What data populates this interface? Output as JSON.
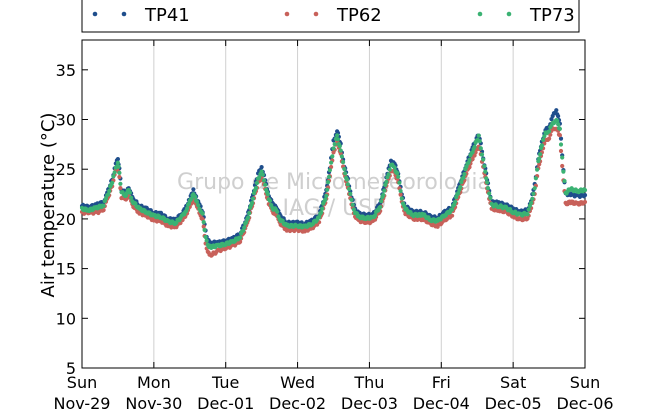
{
  "chart_data": {
    "type": "line",
    "ylabel": "Air temperature (°C)",
    "ylim": [
      5,
      38
    ],
    "yticks": [
      5,
      10,
      15,
      20,
      25,
      30,
      35
    ],
    "grid": "vertical",
    "legend_placement": "top",
    "watermark": [
      "Grupo de Micrometeorologia",
      "IAG / USP"
    ],
    "x_ticks": [
      {
        "day": "Sun",
        "date": "Nov-29"
      },
      {
        "day": "Mon",
        "date": "Nov-30"
      },
      {
        "day": "Tue",
        "date": "Dec-01"
      },
      {
        "day": "Wed",
        "date": "Dec-02"
      },
      {
        "day": "Thu",
        "date": "Dec-03"
      },
      {
        "day": "Fri",
        "date": "Dec-04"
      },
      {
        "day": "Sat",
        "date": "Dec-05"
      },
      {
        "day": "Sun",
        "date": "Dec-06"
      }
    ],
    "x_unit": "days since Nov-29 00:00",
    "series": [
      {
        "name": "TP41",
        "color": "#1f4e8c",
        "points": [
          [
            0,
            21.3
          ],
          [
            0.1,
            21.2
          ],
          [
            0.2,
            21.4
          ],
          [
            0.3,
            21.7
          ],
          [
            0.35,
            22.6
          ],
          [
            0.42,
            24.0
          ],
          [
            0.47,
            25.5
          ],
          [
            0.5,
            26.1
          ],
          [
            0.52,
            25.0
          ],
          [
            0.55,
            23.0
          ],
          [
            0.6,
            22.6
          ],
          [
            0.65,
            23.2
          ],
          [
            0.7,
            22.1
          ],
          [
            0.8,
            21.3
          ],
          [
            0.9,
            21.0
          ],
          [
            1.0,
            20.6
          ],
          [
            1.1,
            20.5
          ],
          [
            1.2,
            20.0
          ],
          [
            1.3,
            19.9
          ],
          [
            1.4,
            20.6
          ],
          [
            1.45,
            21.2
          ],
          [
            1.5,
            22.0
          ],
          [
            1.55,
            22.9
          ],
          [
            1.6,
            21.9
          ],
          [
            1.65,
            21.2
          ],
          [
            1.68,
            20.7
          ],
          [
            1.72,
            18.8
          ],
          [
            1.75,
            17.8
          ],
          [
            1.8,
            17.6
          ],
          [
            1.9,
            17.6
          ],
          [
            2.0,
            17.8
          ],
          [
            2.1,
            18.0
          ],
          [
            2.2,
            18.5
          ],
          [
            2.3,
            20.2
          ],
          [
            2.38,
            22.5
          ],
          [
            2.45,
            24.5
          ],
          [
            2.5,
            25.3
          ],
          [
            2.55,
            23.8
          ],
          [
            2.6,
            22.4
          ],
          [
            2.65,
            21.5
          ],
          [
            2.7,
            21.3
          ],
          [
            2.75,
            20.4
          ],
          [
            2.85,
            19.6
          ],
          [
            3.0,
            19.6
          ],
          [
            3.1,
            19.5
          ],
          [
            3.2,
            19.8
          ],
          [
            3.3,
            20.4
          ],
          [
            3.4,
            22.8
          ],
          [
            3.45,
            25.2
          ],
          [
            3.5,
            27.8
          ],
          [
            3.55,
            28.9
          ],
          [
            3.6,
            27.5
          ],
          [
            3.65,
            25.3
          ],
          [
            3.7,
            24.0
          ],
          [
            3.75,
            22.2
          ],
          [
            3.8,
            21.0
          ],
          [
            3.85,
            20.5
          ],
          [
            3.95,
            20.4
          ],
          [
            4.05,
            20.4
          ],
          [
            4.15,
            21.6
          ],
          [
            4.25,
            24.5
          ],
          [
            4.3,
            25.9
          ],
          [
            4.35,
            25.5
          ],
          [
            4.4,
            24.6
          ],
          [
            4.45,
            22.4
          ],
          [
            4.5,
            21.3
          ],
          [
            4.6,
            20.7
          ],
          [
            4.75,
            20.7
          ],
          [
            4.85,
            20.2
          ],
          [
            4.95,
            20.1
          ],
          [
            5.05,
            20.7
          ],
          [
            5.15,
            21.2
          ],
          [
            5.25,
            23.3
          ],
          [
            5.35,
            25.5
          ],
          [
            5.45,
            27.4
          ],
          [
            5.52,
            28.5
          ],
          [
            5.55,
            27.5
          ],
          [
            5.6,
            25.5
          ],
          [
            5.65,
            23.5
          ],
          [
            5.7,
            21.7
          ],
          [
            5.8,
            21.6
          ],
          [
            5.9,
            21.4
          ],
          [
            6.0,
            21.0
          ],
          [
            6.1,
            20.7
          ],
          [
            6.2,
            20.9
          ],
          [
            6.25,
            21.8
          ],
          [
            6.3,
            23.5
          ],
          [
            6.35,
            26.0
          ],
          [
            6.4,
            27.8
          ],
          [
            6.45,
            28.9
          ],
          [
            6.5,
            29.3
          ],
          [
            6.55,
            30.3
          ],
          [
            6.6,
            31.0
          ],
          [
            6.65,
            29.5
          ],
          [
            6.7,
            25.0
          ],
          [
            6.73,
            22.5
          ],
          [
            6.8,
            22.5
          ],
          [
            6.9,
            22.3
          ],
          [
            7.0,
            22.4
          ]
        ]
      },
      {
        "name": "TP62",
        "color": "#c8615a",
        "points": [
          [
            0,
            20.6
          ],
          [
            0.1,
            20.7
          ],
          [
            0.2,
            20.6
          ],
          [
            0.3,
            21.0
          ],
          [
            0.35,
            21.9
          ],
          [
            0.42,
            23.4
          ],
          [
            0.47,
            24.8
          ],
          [
            0.5,
            25.3
          ],
          [
            0.52,
            24.1
          ],
          [
            0.55,
            22.2
          ],
          [
            0.6,
            21.9
          ],
          [
            0.65,
            22.4
          ],
          [
            0.7,
            21.4
          ],
          [
            0.8,
            20.6
          ],
          [
            0.9,
            20.3
          ],
          [
            1.0,
            19.9
          ],
          [
            1.1,
            19.8
          ],
          [
            1.2,
            19.3
          ],
          [
            1.3,
            19.2
          ],
          [
            1.4,
            19.9
          ],
          [
            1.45,
            20.5
          ],
          [
            1.5,
            21.2
          ],
          [
            1.55,
            22.0
          ],
          [
            1.6,
            21.2
          ],
          [
            1.65,
            20.4
          ],
          [
            1.68,
            19.9
          ],
          [
            1.72,
            17.6
          ],
          [
            1.75,
            16.6
          ],
          [
            1.8,
            16.4
          ],
          [
            1.9,
            16.8
          ],
          [
            2.0,
            17.1
          ],
          [
            2.1,
            17.3
          ],
          [
            2.2,
            17.8
          ],
          [
            2.3,
            19.5
          ],
          [
            2.38,
            21.7
          ],
          [
            2.45,
            23.6
          ],
          [
            2.5,
            24.3
          ],
          [
            2.55,
            22.9
          ],
          [
            2.6,
            21.6
          ],
          [
            2.65,
            20.7
          ],
          [
            2.7,
            20.5
          ],
          [
            2.75,
            19.6
          ],
          [
            2.85,
            18.9
          ],
          [
            3.0,
            18.9
          ],
          [
            3.1,
            18.8
          ],
          [
            3.2,
            19.1
          ],
          [
            3.3,
            19.7
          ],
          [
            3.4,
            22.0
          ],
          [
            3.45,
            24.3
          ],
          [
            3.5,
            26.7
          ],
          [
            3.55,
            27.8
          ],
          [
            3.6,
            26.6
          ],
          [
            3.65,
            24.5
          ],
          [
            3.7,
            23.2
          ],
          [
            3.75,
            21.4
          ],
          [
            3.8,
            20.3
          ],
          [
            3.85,
            19.8
          ],
          [
            3.95,
            19.7
          ],
          [
            4.05,
            19.7
          ],
          [
            4.15,
            20.9
          ],
          [
            4.25,
            23.6
          ],
          [
            4.3,
            24.9
          ],
          [
            4.35,
            24.6
          ],
          [
            4.4,
            23.8
          ],
          [
            4.45,
            21.6
          ],
          [
            4.5,
            20.6
          ],
          [
            4.6,
            20.0
          ],
          [
            4.75,
            20.0
          ],
          [
            4.85,
            19.5
          ],
          [
            4.95,
            19.3
          ],
          [
            5.05,
            19.9
          ],
          [
            5.15,
            20.4
          ],
          [
            5.25,
            22.5
          ],
          [
            5.35,
            24.6
          ],
          [
            5.45,
            26.3
          ],
          [
            5.52,
            27.3
          ],
          [
            5.55,
            26.5
          ],
          [
            5.6,
            24.6
          ],
          [
            5.65,
            22.7
          ],
          [
            5.7,
            21.0
          ],
          [
            5.8,
            20.9
          ],
          [
            5.9,
            20.7
          ],
          [
            6.0,
            20.3
          ],
          [
            6.1,
            19.9
          ],
          [
            6.2,
            20.1
          ],
          [
            6.25,
            21.0
          ],
          [
            6.3,
            22.6
          ],
          [
            6.35,
            25.0
          ],
          [
            6.4,
            26.8
          ],
          [
            6.45,
            27.8
          ],
          [
            6.5,
            28.2
          ],
          [
            6.55,
            29.0
          ],
          [
            6.6,
            29.2
          ],
          [
            6.65,
            28.3
          ],
          [
            6.7,
            24.0
          ],
          [
            6.73,
            21.5
          ],
          [
            6.8,
            21.7
          ],
          [
            6.9,
            21.5
          ],
          [
            7.0,
            21.7
          ]
        ]
      },
      {
        "name": "TP73",
        "color": "#3bb273",
        "points": [
          [
            0,
            21.0
          ],
          [
            0.1,
            20.9
          ],
          [
            0.2,
            21.1
          ],
          [
            0.3,
            21.4
          ],
          [
            0.35,
            22.3
          ],
          [
            0.42,
            23.7
          ],
          [
            0.47,
            25.1
          ],
          [
            0.5,
            25.7
          ],
          [
            0.52,
            24.6
          ],
          [
            0.55,
            22.7
          ],
          [
            0.6,
            22.3
          ],
          [
            0.65,
            22.9
          ],
          [
            0.7,
            21.8
          ],
          [
            0.8,
            21.0
          ],
          [
            0.9,
            20.7
          ],
          [
            1.0,
            20.3
          ],
          [
            1.1,
            20.2
          ],
          [
            1.2,
            19.7
          ],
          [
            1.3,
            19.6
          ],
          [
            1.4,
            20.3
          ],
          [
            1.45,
            20.9
          ],
          [
            1.5,
            21.7
          ],
          [
            1.55,
            22.6
          ],
          [
            1.6,
            21.6
          ],
          [
            1.65,
            20.9
          ],
          [
            1.68,
            20.4
          ],
          [
            1.72,
            18.3
          ],
          [
            1.75,
            17.3
          ],
          [
            1.8,
            17.2
          ],
          [
            1.9,
            17.3
          ],
          [
            2.0,
            17.5
          ],
          [
            2.1,
            17.7
          ],
          [
            2.2,
            18.2
          ],
          [
            2.3,
            19.9
          ],
          [
            2.38,
            22.1
          ],
          [
            2.45,
            24.0
          ],
          [
            2.5,
            24.8
          ],
          [
            2.55,
            23.4
          ],
          [
            2.6,
            22.0
          ],
          [
            2.65,
            21.1
          ],
          [
            2.7,
            20.9
          ],
          [
            2.75,
            20.0
          ],
          [
            2.85,
            19.3
          ],
          [
            3.0,
            19.3
          ],
          [
            3.1,
            19.2
          ],
          [
            3.2,
            19.5
          ],
          [
            3.3,
            20.1
          ],
          [
            3.4,
            22.4
          ],
          [
            3.45,
            24.8
          ],
          [
            3.5,
            27.2
          ],
          [
            3.55,
            28.3
          ],
          [
            3.6,
            27.0
          ],
          [
            3.65,
            24.9
          ],
          [
            3.7,
            23.6
          ],
          [
            3.75,
            21.8
          ],
          [
            3.8,
            20.7
          ],
          [
            3.85,
            20.2
          ],
          [
            3.95,
            20.1
          ],
          [
            4.05,
            20.1
          ],
          [
            4.15,
            21.3
          ],
          [
            4.25,
            24.1
          ],
          [
            4.3,
            25.5
          ],
          [
            4.35,
            25.1
          ],
          [
            4.4,
            24.3
          ],
          [
            4.45,
            22.0
          ],
          [
            4.5,
            21.0
          ],
          [
            4.6,
            20.4
          ],
          [
            4.75,
            20.4
          ],
          [
            4.85,
            19.9
          ],
          [
            4.95,
            19.8
          ],
          [
            5.05,
            20.4
          ],
          [
            5.15,
            20.9
          ],
          [
            5.25,
            23.0
          ],
          [
            5.35,
            25.2
          ],
          [
            5.45,
            27.1
          ],
          [
            5.52,
            28.3
          ],
          [
            5.55,
            27.2
          ],
          [
            5.6,
            25.2
          ],
          [
            5.65,
            23.2
          ],
          [
            5.7,
            21.4
          ],
          [
            5.8,
            21.3
          ],
          [
            5.9,
            21.1
          ],
          [
            6.0,
            20.7
          ],
          [
            6.1,
            20.4
          ],
          [
            6.2,
            20.6
          ],
          [
            6.25,
            21.5
          ],
          [
            6.3,
            23.2
          ],
          [
            6.35,
            25.7
          ],
          [
            6.4,
            27.5
          ],
          [
            6.45,
            28.6
          ],
          [
            6.5,
            28.9
          ],
          [
            6.55,
            29.6
          ],
          [
            6.6,
            30.0
          ],
          [
            6.65,
            29.0
          ],
          [
            6.7,
            24.8
          ],
          [
            6.73,
            22.6
          ],
          [
            6.8,
            23.0
          ],
          [
            6.9,
            22.8
          ],
          [
            7.0,
            22.9
          ]
        ]
      }
    ]
  }
}
